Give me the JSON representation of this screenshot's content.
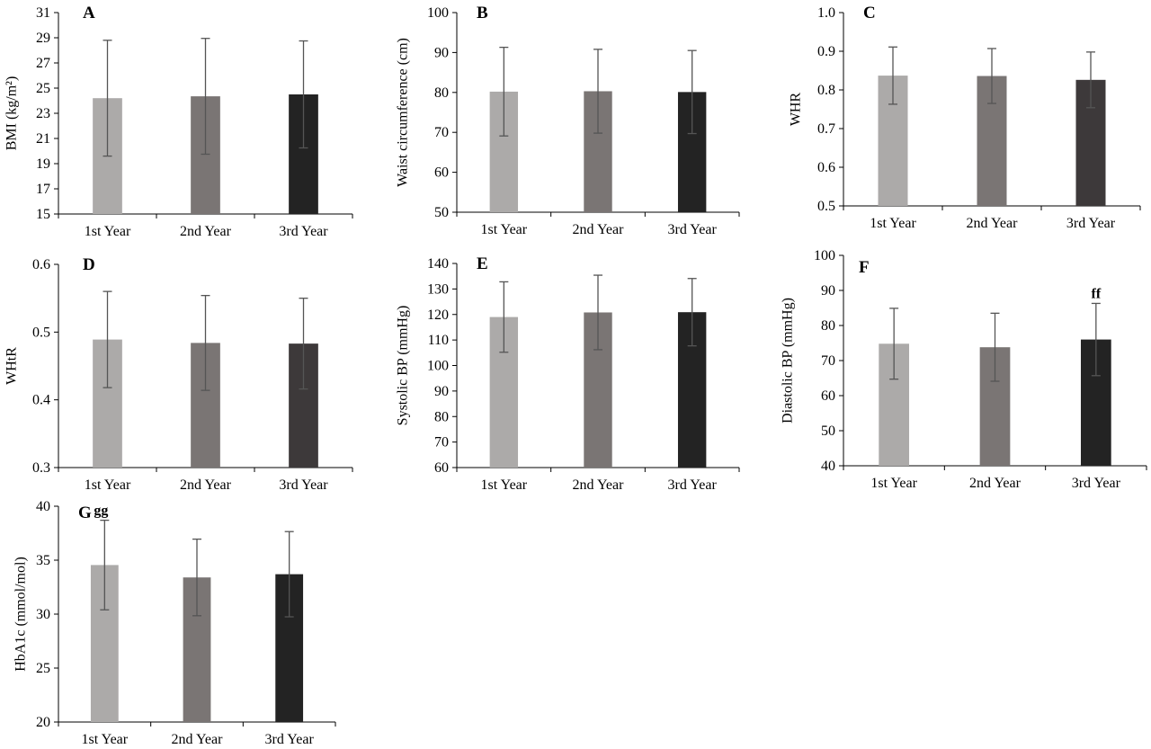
{
  "chart_data": [
    {
      "panel": "A",
      "type": "bar",
      "ylabel": "BMI (kg/m²)",
      "categories": [
        "1st Year",
        "2nd Year",
        "3rd Year"
      ],
      "values": [
        24.2,
        24.35,
        24.5
      ],
      "errors": [
        4.6,
        4.6,
        4.25
      ],
      "ylim": [
        15,
        31
      ],
      "yticks": [
        15,
        17,
        19,
        21,
        23,
        25,
        27,
        29,
        31
      ],
      "tick_decimals": 0,
      "colors": [
        "#acaaa9",
        "#7a7574",
        "#232323"
      ],
      "annotations": []
    },
    {
      "panel": "B",
      "type": "bar",
      "ylabel": "Waist circumference (cm)",
      "categories": [
        "1st Year",
        "2nd Year",
        "3rd Year"
      ],
      "values": [
        80.2,
        80.3,
        80.1
      ],
      "errors": [
        11.1,
        10.5,
        10.4
      ],
      "ylim": [
        50,
        100
      ],
      "yticks": [
        50,
        60,
        70,
        80,
        90,
        100
      ],
      "tick_decimals": 0,
      "colors": [
        "#acaaa9",
        "#7a7574",
        "#232323"
      ],
      "annotations": []
    },
    {
      "panel": "C",
      "type": "bar",
      "ylabel": "WHR",
      "categories": [
        "1st Year",
        "2nd Year",
        "3rd Year"
      ],
      "values": [
        0.837,
        0.836,
        0.826
      ],
      "errors": [
        0.074,
        0.071,
        0.072
      ],
      "ylim": [
        0.5,
        1.0
      ],
      "yticks": [
        0.5,
        0.6,
        0.7,
        0.8,
        0.9,
        1.0
      ],
      "tick_decimals": 1,
      "colors": [
        "#acaaa9",
        "#7a7574",
        "#3d393a"
      ],
      "annotations": []
    },
    {
      "panel": "D",
      "type": "bar",
      "ylabel": "WHtR",
      "categories": [
        "1st Year",
        "2nd Year",
        "3rd Year"
      ],
      "values": [
        0.489,
        0.484,
        0.483
      ],
      "errors": [
        0.071,
        0.07,
        0.067
      ],
      "ylim": [
        0.3,
        0.6
      ],
      "yticks": [
        0.3,
        0.4,
        0.5,
        0.6
      ],
      "tick_decimals": 1,
      "colors": [
        "#acaaa9",
        "#7a7574",
        "#3d393a"
      ],
      "annotations": []
    },
    {
      "panel": "E",
      "type": "bar",
      "ylabel": "Systolic BP (mmHg)",
      "categories": [
        "1st Year",
        "2nd Year",
        "3rd Year"
      ],
      "values": [
        119,
        120.8,
        120.9
      ],
      "errors": [
        13.8,
        14.6,
        13.2
      ],
      "ylim": [
        60,
        140
      ],
      "yticks": [
        60,
        70,
        80,
        90,
        100,
        110,
        120,
        130,
        140
      ],
      "tick_decimals": 0,
      "colors": [
        "#acaaa9",
        "#7a7574",
        "#232323"
      ],
      "annotations": []
    },
    {
      "panel": "F",
      "type": "bar",
      "ylabel": "Diastolic BP (mmHg)",
      "categories": [
        "1st Year",
        "2nd Year",
        "3rd Year"
      ],
      "values": [
        74.8,
        73.8,
        76
      ],
      "errors": [
        10.1,
        9.7,
        10.3
      ],
      "ylim": [
        40,
        100
      ],
      "yticks": [
        40,
        50,
        60,
        70,
        80,
        90,
        100
      ],
      "tick_decimals": 0,
      "colors": [
        "#acaaa9",
        "#7a7574",
        "#232323"
      ],
      "annotations": [
        {
          "index": 2,
          "text": "ff"
        }
      ]
    },
    {
      "panel": "G",
      "type": "bar",
      "ylabel": "HbA1c (mmol/mol)",
      "categories": [
        "1st Year",
        "2nd Year",
        "3rd Year"
      ],
      "values": [
        34.55,
        33.4,
        33.7
      ],
      "errors": [
        4.15,
        3.55,
        3.95
      ],
      "ylim": [
        20,
        40
      ],
      "yticks": [
        20,
        25,
        30,
        35,
        40
      ],
      "tick_decimals": 0,
      "colors": [
        "#acaaa9",
        "#7a7574",
        "#232323"
      ],
      "annotations": [
        {
          "index": 0,
          "text": "gg"
        }
      ]
    }
  ]
}
